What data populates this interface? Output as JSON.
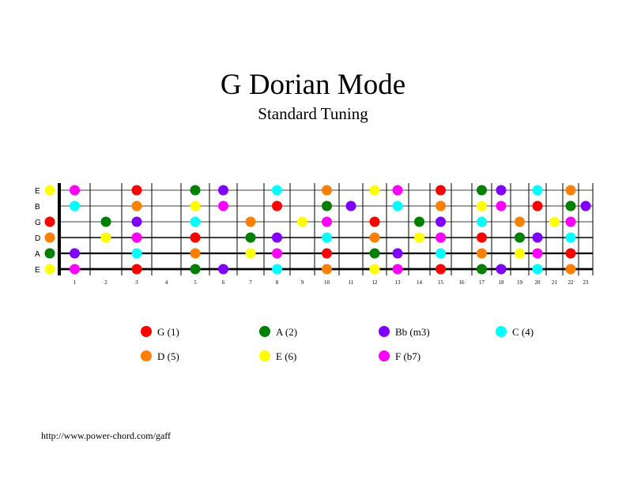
{
  "title": "G Dorian Mode",
  "subtitle": "Standard Tuning",
  "strings": [
    "E",
    "B",
    "G",
    "D",
    "A",
    "E"
  ],
  "fret_numbers": [
    "1",
    "2",
    "3",
    "4",
    "5",
    "6",
    "7",
    "8",
    "9",
    "10",
    "11",
    "12",
    "13",
    "14",
    "15",
    "16",
    "17",
    "18",
    "19",
    "20",
    "21",
    "22",
    "23"
  ],
  "note_colors": {
    "G": "#ff0000",
    "A": "#008000",
    "Bb": "#8000ff",
    "C": "#00ffff",
    "D": "#ff8000",
    "E": "#ffff00",
    "F": "#ff00ff"
  },
  "legend": [
    {
      "note": "G",
      "label": "G (1)"
    },
    {
      "note": "A",
      "label": "A (2)"
    },
    {
      "note": "Bb",
      "label": "Bb (m3)"
    },
    {
      "note": "C",
      "label": "C (4)"
    },
    {
      "note": "D",
      "label": "D (5)"
    },
    {
      "note": "E",
      "label": "E (6)"
    },
    {
      "note": "F",
      "label": "F (b7)"
    }
  ],
  "url": "http://www.power-chord.com/gaff"
}
